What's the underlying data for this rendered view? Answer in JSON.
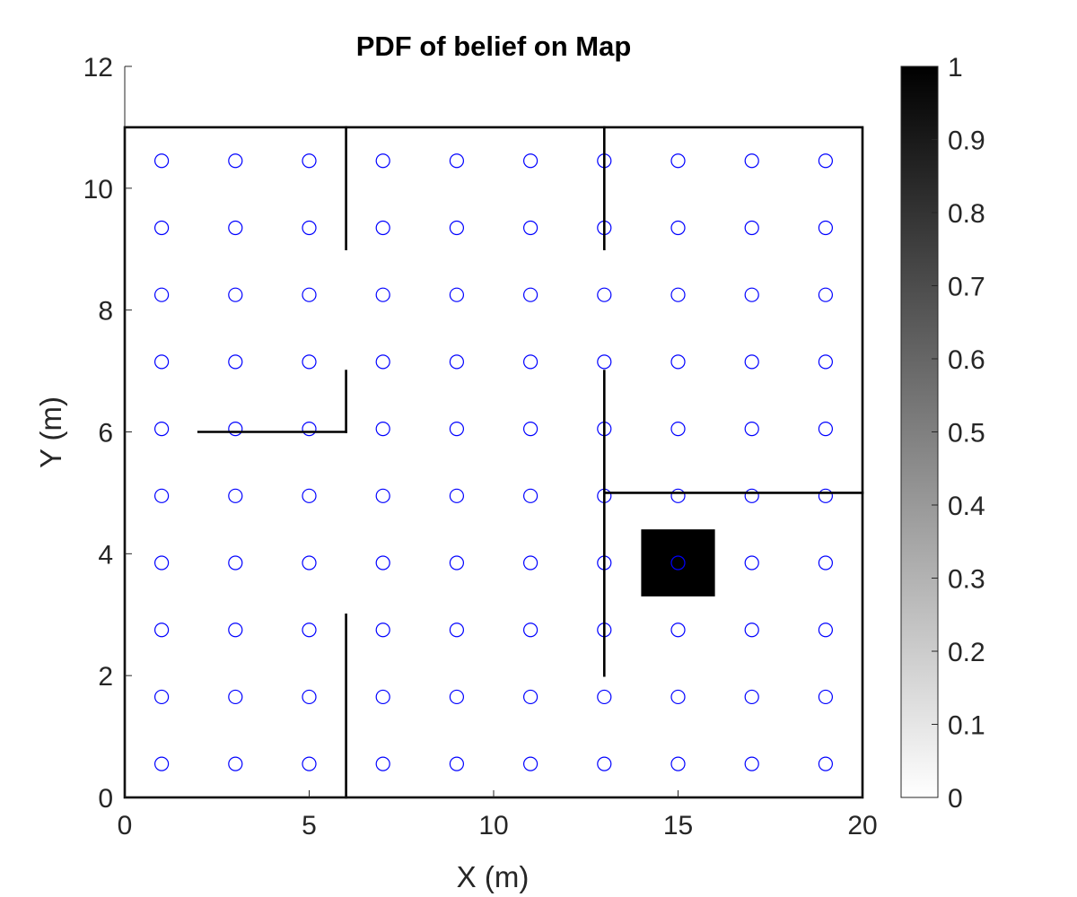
{
  "chart_data": {
    "type": "heatmap",
    "title": "PDF of belief on Map",
    "xlabel": "X (m)",
    "ylabel": "Y (m)",
    "xlim": [
      0,
      20
    ],
    "ylim": [
      0,
      12
    ],
    "xticks": [
      0,
      5,
      10,
      15,
      20
    ],
    "xtick_labels": [
      "0",
      "5",
      "10",
      "15",
      "20"
    ],
    "yticks": [
      0,
      2,
      4,
      6,
      8,
      10,
      12
    ],
    "ytick_labels": [
      "0",
      "2",
      "4",
      "6",
      "8",
      "10",
      "12"
    ],
    "grid": false,
    "map": {
      "boundary": {
        "x": [
          0,
          20
        ],
        "y": [
          0,
          11
        ]
      },
      "walls": [
        {
          "x1": 6,
          "y1": 0,
          "x2": 6,
          "y2": 3
        },
        {
          "x1": 6,
          "y1": 9,
          "x2": 6,
          "y2": 11
        },
        {
          "x1": 2,
          "y1": 6,
          "x2": 6,
          "y2": 6
        },
        {
          "x1": 6,
          "y1": 6,
          "x2": 6,
          "y2": 7
        },
        {
          "x1": 13,
          "y1": 9,
          "x2": 13,
          "y2": 11
        },
        {
          "x1": 13,
          "y1": 2,
          "x2": 13,
          "y2": 7
        },
        {
          "x1": 13,
          "y1": 5,
          "x2": 20,
          "y2": 5
        }
      ]
    },
    "grid_points": {
      "x": [
        1,
        3,
        5,
        7,
        9,
        11,
        13,
        15,
        17,
        19
      ],
      "y": [
        0.55,
        1.65,
        2.75,
        3.85,
        4.95,
        6.05,
        7.15,
        8.25,
        9.35,
        10.45
      ],
      "color": "#0000ff",
      "marker": "circle"
    },
    "belief_cells": [
      {
        "x": [
          14,
          16
        ],
        "y": [
          3.3,
          4.4
        ],
        "value": 1
      }
    ],
    "colorbar": {
      "min": 0,
      "max": 1,
      "colormap": "gray-reversed",
      "ticks": [
        0,
        0.1,
        0.2,
        0.3,
        0.4,
        0.5,
        0.6,
        0.7,
        0.8,
        0.9,
        1
      ],
      "tick_labels": [
        "0",
        "0.1",
        "0.2",
        "0.3",
        "0.4",
        "0.5",
        "0.6",
        "0.7",
        "0.8",
        "0.9",
        "1"
      ]
    }
  }
}
